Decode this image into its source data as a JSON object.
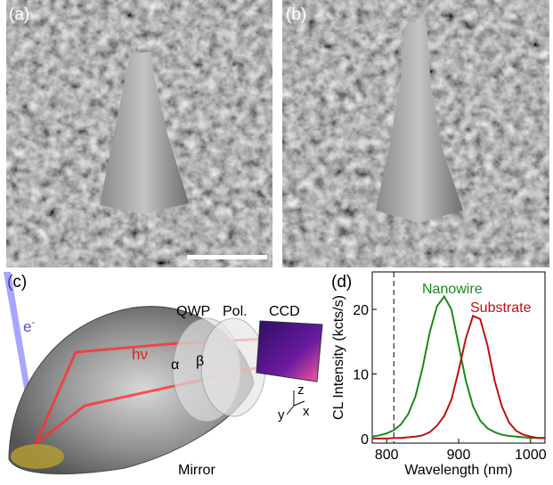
{
  "panels": {
    "a": "(a)",
    "b": "(b)",
    "c": "(c)"
  },
  "diagram": {
    "electron": "e",
    "electron_sup": "-",
    "photon": "hν",
    "qwp": "QWP",
    "pol": "Pol.",
    "ccd": "CCD",
    "alpha": "α",
    "beta": "β",
    "z": "z",
    "y": "y",
    "x": "x",
    "mirror": "Mirror"
  },
  "chart_data": {
    "type": "line",
    "label": "(d)",
    "xlabel": "Wavelength (nm)",
    "ylabel": "CL Intensity (kcts/s)",
    "x": [
      780,
      790,
      800,
      810,
      820,
      830,
      840,
      850,
      860,
      870,
      880,
      890,
      900,
      910,
      920,
      930,
      940,
      950,
      960,
      970,
      980,
      990,
      1000,
      1010,
      1020
    ],
    "series": [
      {
        "name": "Nanowire",
        "color": "#1a8a1a",
        "values": [
          0.3,
          0.5,
          0.8,
          1.3,
          2.2,
          3.8,
          6.5,
          11,
          16.5,
          20.5,
          22,
          20,
          14.5,
          9,
          5,
          2.8,
          1.6,
          1,
          0.6,
          0.4,
          0.3,
          0.2,
          0.1,
          0.1,
          0.1
        ]
      },
      {
        "name": "Substrate",
        "color": "#c01010",
        "values": [
          0,
          0,
          0,
          0.1,
          0.1,
          0.2,
          0.3,
          0.5,
          1,
          2,
          3.5,
          6,
          10.5,
          15.5,
          19,
          18.5,
          14.5,
          9,
          5,
          2.5,
          1.2,
          0.6,
          0.3,
          0.1,
          0.1
        ]
      }
    ],
    "marker_x": 810,
    "xlim": [
      780,
      1020
    ],
    "ylim": [
      -0.7,
      25.8
    ],
    "xticks": [
      800,
      900,
      1000
    ],
    "yticks": [
      0,
      10,
      20
    ]
  }
}
